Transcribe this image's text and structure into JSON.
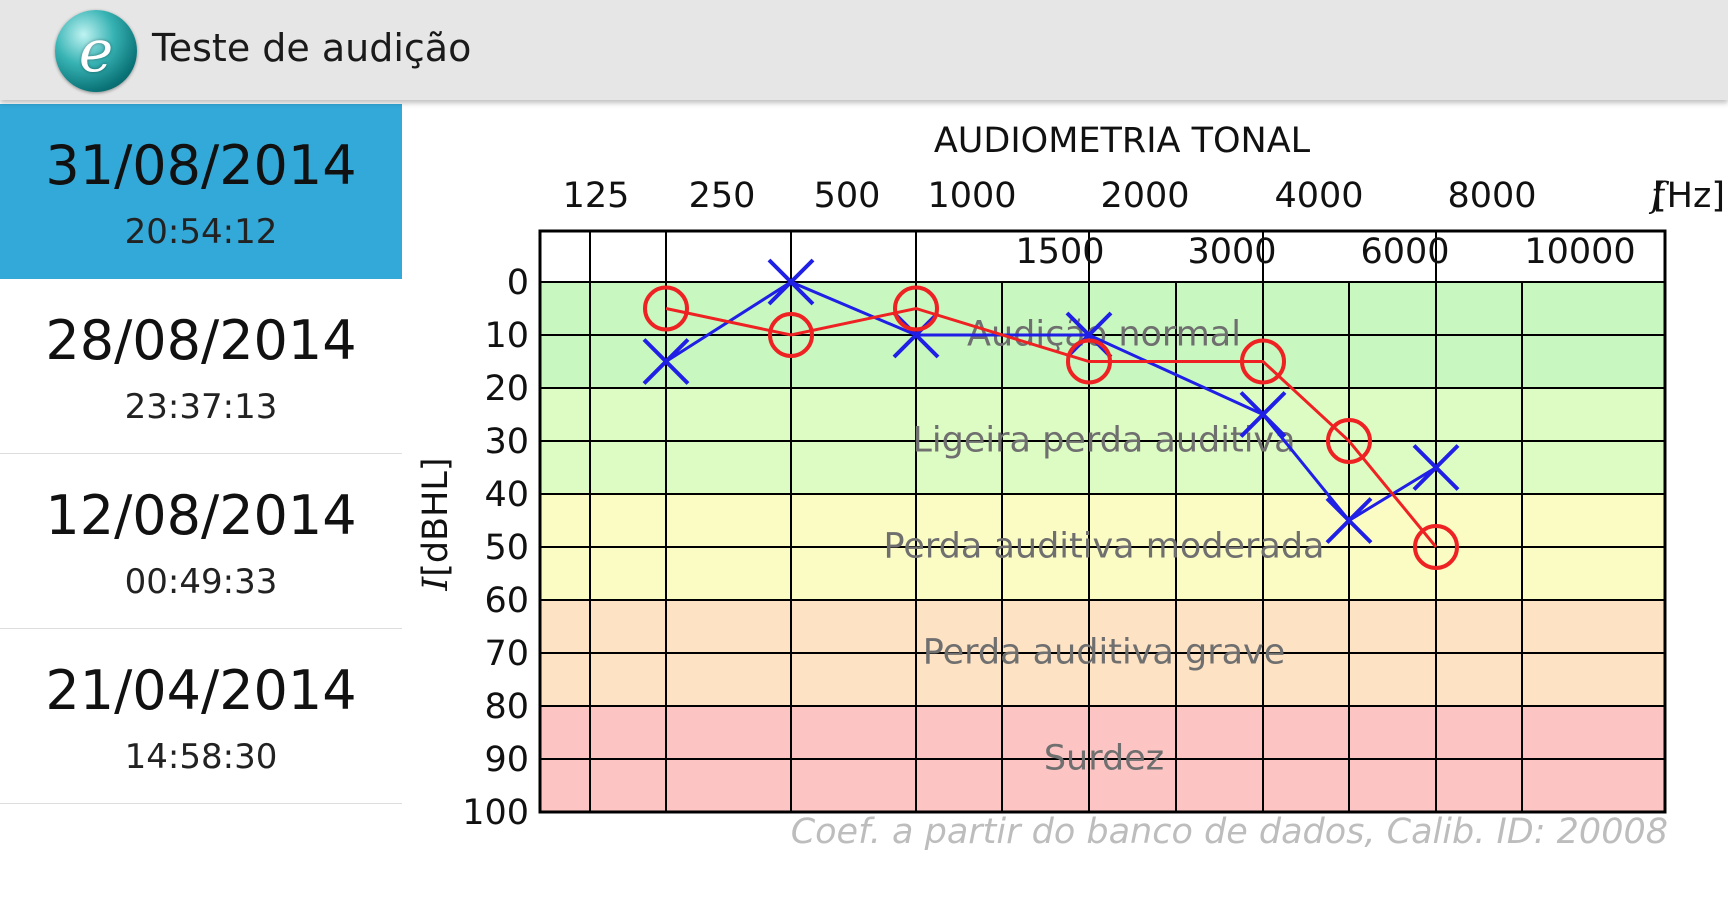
{
  "app": {
    "title": "Teste de audição",
    "logo_icon": "e-logo-icon"
  },
  "sessions": [
    {
      "date": "31/08/2014",
      "time": "20:54:12",
      "selected": true
    },
    {
      "date": "28/08/2014",
      "time": "23:37:13",
      "selected": false
    },
    {
      "date": "12/08/2014",
      "time": "00:49:33",
      "selected": false
    },
    {
      "date": "21/04/2014",
      "time": "14:58:30",
      "selected": false
    }
  ],
  "chart_data": {
    "type": "line",
    "title": "AUDIOMETRIA TONAL",
    "xlabel_italic": "f",
    "xlabel_unit": "[Hz]",
    "ylabel_italic": "I",
    "ylabel_unit": "[dBHL]",
    "x_ticks_top": [
      "125",
      "250",
      "500",
      "1000",
      "2000",
      "4000",
      "8000"
    ],
    "x_ticks_inner": [
      "1500",
      "3000",
      "6000",
      "10000"
    ],
    "y_ticks": [
      0,
      10,
      20,
      30,
      40,
      50,
      60,
      70,
      80,
      90,
      100
    ],
    "ylim": [
      0,
      100
    ],
    "y_inverted": true,
    "zones": [
      {
        "label": "Audição normal",
        "from": 0,
        "to": 20,
        "color": "#c8f7c0"
      },
      {
        "label": "Ligeira perda auditiva",
        "from": 20,
        "to": 40,
        "color": "#ddfcc4"
      },
      {
        "label": "Perda auditiva moderada",
        "from": 40,
        "to": 60,
        "color": "#fbfbc4"
      },
      {
        "label": "Perda auditiva grave",
        "from": 60,
        "to": 80,
        "color": "#fde2c4"
      },
      {
        "label": "Surdez",
        "from": 80,
        "to": 100,
        "color": "#fdc4c4"
      }
    ],
    "series": [
      {
        "marker": "x",
        "color": "#1f1fe6",
        "x": [
          250,
          500,
          1000,
          2000,
          4000,
          6000,
          8000
        ],
        "values": [
          15,
          0,
          10,
          10,
          25,
          45,
          35
        ]
      },
      {
        "marker": "o",
        "color": "#ee2222",
        "x": [
          250,
          500,
          1000,
          2000,
          4000,
          6000,
          8000
        ],
        "values": [
          5,
          10,
          5,
          15,
          15,
          30,
          50
        ]
      }
    ],
    "grid": true
  },
  "calibration": {
    "text": "Coef. a partir do banco de dados, Calib. ID: 20008"
  }
}
